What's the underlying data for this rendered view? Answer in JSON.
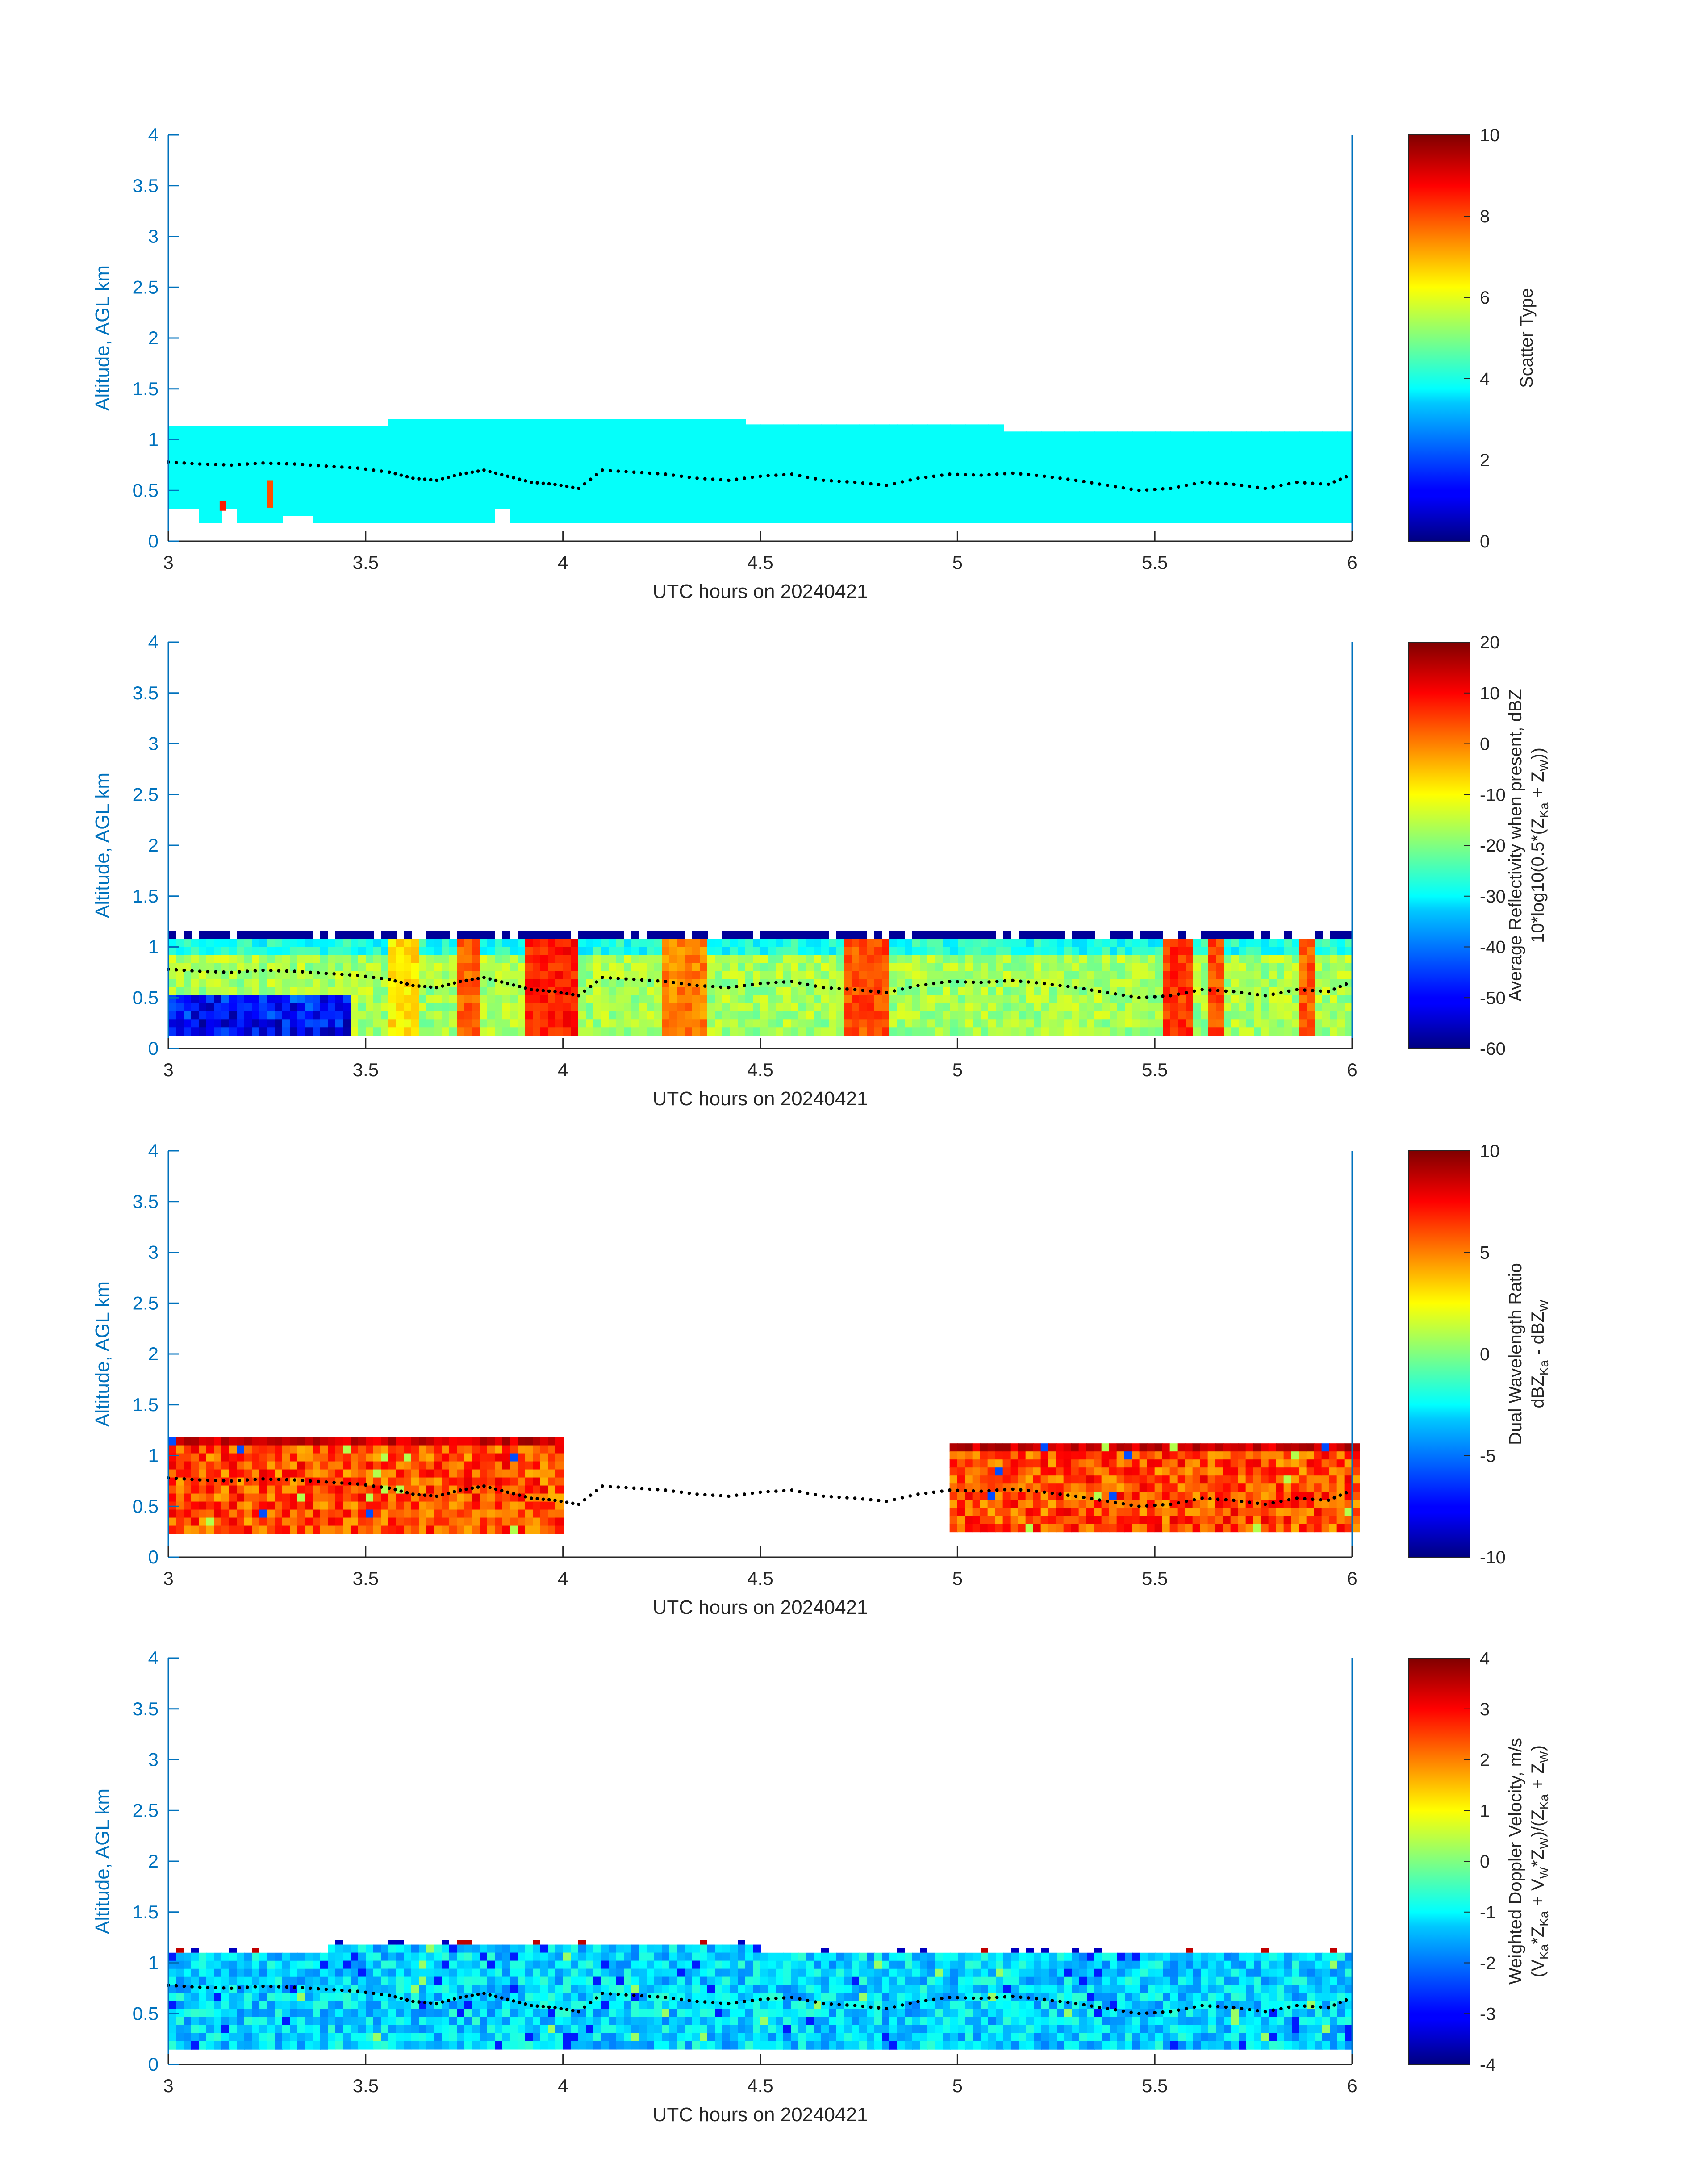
{
  "chart_data": [
    {
      "type": "heatmap",
      "xlabel": "UTC hours on 20240421",
      "ylabel": "Altitude, AGL km",
      "xlim": [
        3,
        6
      ],
      "ylim": [
        0,
        4
      ],
      "xticks": [
        "3",
        "3.5",
        "4",
        "4.5",
        "5",
        "5.5",
        "6"
      ],
      "yticks": [
        "0",
        "0.5",
        "1",
        "1.5",
        "2",
        "2.5",
        "3",
        "3.5",
        "4"
      ],
      "colorbar": {
        "label_lines": [
          "Scatter Type"
        ],
        "range": [
          0,
          10
        ],
        "ticks": [
          "0",
          "2",
          "4",
          "6",
          "8",
          "10"
        ]
      },
      "field": {
        "x_start": 3.0,
        "x_end": 6.0,
        "base_km": 0.18,
        "top_segments": [
          [
            3.0,
            3.55,
            1.13
          ],
          [
            3.55,
            4.45,
            1.2
          ],
          [
            4.45,
            5.1,
            1.15
          ],
          [
            5.1,
            6.0,
            1.08
          ]
        ],
        "base_gaps": [
          [
            3.0,
            3.07,
            0.32
          ],
          [
            3.12,
            3.17,
            0.32
          ],
          [
            3.28,
            3.35,
            0.25
          ],
          [
            3.82,
            3.86,
            0.32
          ]
        ],
        "fill_value": 3.8,
        "patches": [
          {
            "x": 3.25,
            "y0": 0.33,
            "y1": 0.6,
            "value": 8.0
          },
          {
            "x": 3.13,
            "y0": 0.3,
            "y1": 0.4,
            "value": 8.5
          }
        ]
      }
    },
    {
      "type": "heatmap",
      "xlabel": "UTC hours on 20240421",
      "ylabel": "Altitude, AGL km",
      "xlim": [
        3,
        6
      ],
      "ylim": [
        0,
        4
      ],
      "xticks": [
        "3",
        "3.5",
        "4",
        "4.5",
        "5",
        "5.5",
        "6"
      ],
      "yticks": [
        "0",
        "0.5",
        "1",
        "1.5",
        "2",
        "2.5",
        "3",
        "3.5",
        "4"
      ],
      "colorbar": {
        "label_lines": [
          "Average Reflectivity when present, dBZ",
          "10*log10(0.5*(Z_Ka + Z_W))"
        ],
        "range": [
          -60,
          20
        ],
        "ticks": [
          "-60",
          "-50",
          "-40",
          "-30",
          "-20",
          "-10",
          "0",
          "10",
          "20"
        ]
      },
      "field": {
        "x_start": 3.0,
        "x_end": 6.0,
        "base_km": 0.18,
        "top_km": 1.08,
        "cap_top_km": 1.16,
        "cap_value": -58,
        "low_value": -47,
        "mid_value": -17,
        "warm_bands": [
          [
            3.55,
            3.62,
            -8
          ],
          [
            3.72,
            3.78,
            2
          ],
          [
            3.9,
            4.02,
            8
          ],
          [
            4.25,
            4.35,
            0
          ],
          [
            4.7,
            4.82,
            4
          ],
          [
            5.52,
            5.58,
            6
          ],
          [
            5.62,
            5.66,
            4
          ],
          [
            5.85,
            5.9,
            3
          ]
        ]
      }
    },
    {
      "type": "heatmap",
      "xlabel": "UTC hours on 20240421",
      "ylabel": "Altitude, AGL km",
      "xlim": [
        3,
        6
      ],
      "ylim": [
        0,
        4
      ],
      "xticks": [
        "3",
        "3.5",
        "4",
        "4.5",
        "5",
        "5.5",
        "6"
      ],
      "yticks": [
        "0",
        "0.5",
        "1",
        "1.5",
        "2",
        "2.5",
        "3",
        "3.5",
        "4"
      ],
      "colorbar": {
        "label_lines": [
          "Dual Wavelength Ratio",
          "dBZ_Ka - dBZ_W"
        ],
        "range": [
          -10,
          10
        ],
        "ticks": [
          "-10",
          "-5",
          "0",
          "5",
          "10"
        ]
      },
      "field": {
        "segments": [
          [
            3.0,
            4.0,
            0.25,
            1.18
          ],
          [
            4.98,
            6.0,
            0.25,
            1.12
          ]
        ],
        "typical_value": 6.0,
        "cap_value": 8.5
      }
    },
    {
      "type": "heatmap",
      "xlabel": "UTC hours on 20240421",
      "ylabel": "Altitude, AGL km",
      "xlim": [
        3,
        6
      ],
      "ylim": [
        0,
        4
      ],
      "xticks": [
        "3",
        "3.5",
        "4",
        "4.5",
        "5",
        "5.5",
        "6"
      ],
      "yticks": [
        "0",
        "0.5",
        "1",
        "1.5",
        "2",
        "2.5",
        "3",
        "3.5",
        "4"
      ],
      "colorbar": {
        "label_lines": [
          "Weighted Doppler Velocity, m/s",
          "(V_Ka*Z_Ka + V_W*Z_W)/(Z_Ka + Z_W)"
        ],
        "range": [
          -4,
          4
        ],
        "ticks": [
          "-4",
          "-3",
          "-2",
          "-1",
          "0",
          "1",
          "2",
          "3",
          "4"
        ]
      },
      "field": {
        "x_start": 3.0,
        "x_end": 6.0,
        "base_km": 0.18,
        "top_segments": [
          [
            3.0,
            3.4,
            1.1
          ],
          [
            3.4,
            4.5,
            1.18
          ],
          [
            4.5,
            6.0,
            1.1
          ]
        ],
        "typical_value": -1.3
      }
    }
  ],
  "boundary_layer_dots": {
    "x": [
      3.0,
      3.08,
      3.16,
      3.24,
      3.32,
      3.4,
      3.48,
      3.56,
      3.62,
      3.68,
      3.74,
      3.8,
      3.86,
      3.92,
      3.98,
      4.04,
      4.1,
      4.18,
      4.26,
      4.34,
      4.42,
      4.5,
      4.58,
      4.66,
      4.74,
      4.82,
      4.9,
      4.98,
      5.06,
      5.14,
      5.22,
      5.3,
      5.38,
      5.46,
      5.54,
      5.62,
      5.7,
      5.78,
      5.86,
      5.94,
      6.0
    ],
    "y": [
      0.78,
      0.76,
      0.75,
      0.77,
      0.76,
      0.74,
      0.72,
      0.68,
      0.62,
      0.6,
      0.66,
      0.7,
      0.64,
      0.58,
      0.56,
      0.52,
      0.7,
      0.68,
      0.66,
      0.62,
      0.6,
      0.64,
      0.66,
      0.6,
      0.58,
      0.55,
      0.62,
      0.66,
      0.65,
      0.67,
      0.64,
      0.6,
      0.55,
      0.5,
      0.52,
      0.58,
      0.56,
      0.52,
      0.58,
      0.56,
      0.66
    ]
  },
  "colormap": "jet",
  "colors": {
    "axis": "#0072BD",
    "tick_text": "#0072BD",
    "text": "#262626",
    "dot": "#000000"
  }
}
